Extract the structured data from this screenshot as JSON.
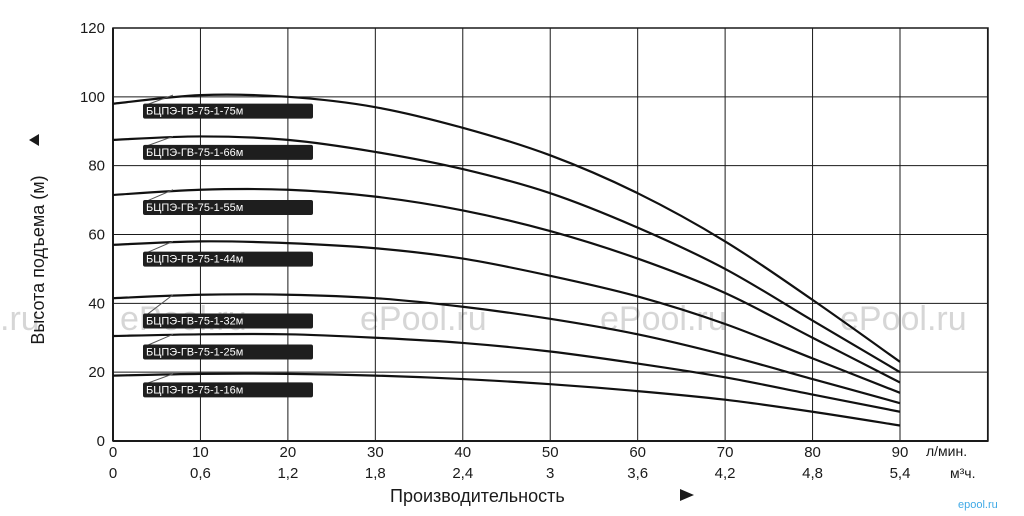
{
  "chart_data": {
    "type": "line",
    "ylabel": "Высота подъема (м)",
    "xlabel": "Производительность",
    "x_unit_primary": "л/мин.",
    "x_unit_secondary": "м³ч.",
    "xlim": [
      0,
      90
    ],
    "ylim": [
      0,
      120
    ],
    "grid": true,
    "x_ticks": [
      "0",
      "10",
      "20",
      "30",
      "40",
      "50",
      "60",
      "70",
      "80",
      "90"
    ],
    "x_ticks_secondary": [
      "0",
      "0,6",
      "1,2",
      "1,8",
      "2,4",
      "3",
      "3,6",
      "4,2",
      "4,8",
      "5,4"
    ],
    "y_ticks": [
      "0",
      "20",
      "40",
      "60",
      "80",
      "100",
      "120"
    ],
    "x": [
      0,
      10,
      20,
      30,
      40,
      50,
      60,
      70,
      80,
      90
    ],
    "series": [
      {
        "name": "БЦПЭ-ГВ-75-1-75м",
        "values": [
          98,
          100.5,
          100,
          97,
          91,
          83,
          72,
          58,
          41,
          23
        ]
      },
      {
        "name": "БЦПЭ-ГВ-75-1-66м",
        "values": [
          87.5,
          88.5,
          87.5,
          84,
          79,
          72,
          62,
          50,
          35,
          20
        ]
      },
      {
        "name": "БЦПЭ-ГВ-75-1-55м",
        "values": [
          71.5,
          73,
          73,
          71,
          67,
          61,
          53,
          43,
          30,
          17
        ]
      },
      {
        "name": "БЦПЭ-ГВ-75-1-44м",
        "values": [
          57,
          58,
          57.5,
          56,
          53,
          48,
          42,
          34,
          24,
          14
        ]
      },
      {
        "name": "БЦПЭ-ГВ-75-1-32м",
        "values": [
          41.5,
          42.5,
          42.5,
          41.5,
          39,
          35.5,
          31,
          25,
          18,
          11
        ]
      },
      {
        "name": "БЦПЭ-ГВ-75-1-25м",
        "values": [
          30.5,
          31,
          31,
          30,
          28.5,
          26,
          22.5,
          18.5,
          13.5,
          8.5
        ]
      },
      {
        "name": "БЦПЭ-ГВ-75-1-16м",
        "values": [
          19,
          19.5,
          19.5,
          19,
          18,
          16.5,
          14.5,
          12,
          8.5,
          4.5
        ]
      }
    ],
    "label_anchor_y": [
      96,
      84,
      68,
      53,
      35,
      26,
      15
    ]
  },
  "watermarks": [
    ".ru",
    "ePool.ru",
    "ePool.ru",
    "ePool.ru",
    "ePool.ru"
  ],
  "brand": "epool.ru"
}
